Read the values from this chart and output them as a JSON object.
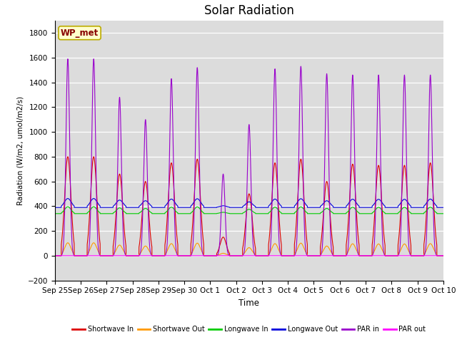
{
  "title": "Solar Radiation",
  "ylabel": "Radiation (W/m2, umol/m2/s)",
  "xlabel": "Time",
  "ylim": [
    -200,
    1900
  ],
  "yticks": [
    -200,
    0,
    200,
    400,
    600,
    800,
    1000,
    1200,
    1400,
    1600,
    1800
  ],
  "bg_color": "#dcdcdc",
  "fig_color": "#ffffff",
  "station_label": "WP_met",
  "legend_entries": [
    "Shortwave In",
    "Shortwave Out",
    "Longwave In",
    "Longwave Out",
    "PAR in",
    "PAR out"
  ],
  "colors": [
    "#dd0000",
    "#ff9900",
    "#00cc00",
    "#0000dd",
    "#9900cc",
    "#ff00ff"
  ],
  "x_tick_labels": [
    "Sep 25",
    "Sep 26",
    "Sep 27",
    "Sep 28",
    "Sep 29",
    "Sep 30",
    "Oct 1",
    "Oct 2",
    "Oct 3",
    "Oct 4",
    "Oct 5",
    "Oct 6",
    "Oct 7",
    "Oct 8",
    "Oct 9",
    "Oct 10"
  ],
  "num_days": 15,
  "pts_per_day": 288,
  "sw_in_peaks": [
    800,
    800,
    660,
    600,
    750,
    780,
    150,
    500,
    750,
    780,
    600,
    740,
    730,
    730,
    750
  ],
  "par_in_peaks": [
    1590,
    1590,
    1280,
    1100,
    1430,
    1520,
    660,
    1060,
    1510,
    1530,
    1470,
    1460,
    1460,
    1460,
    1460
  ],
  "lw_in_base": 340,
  "lw_out_base": 390
}
